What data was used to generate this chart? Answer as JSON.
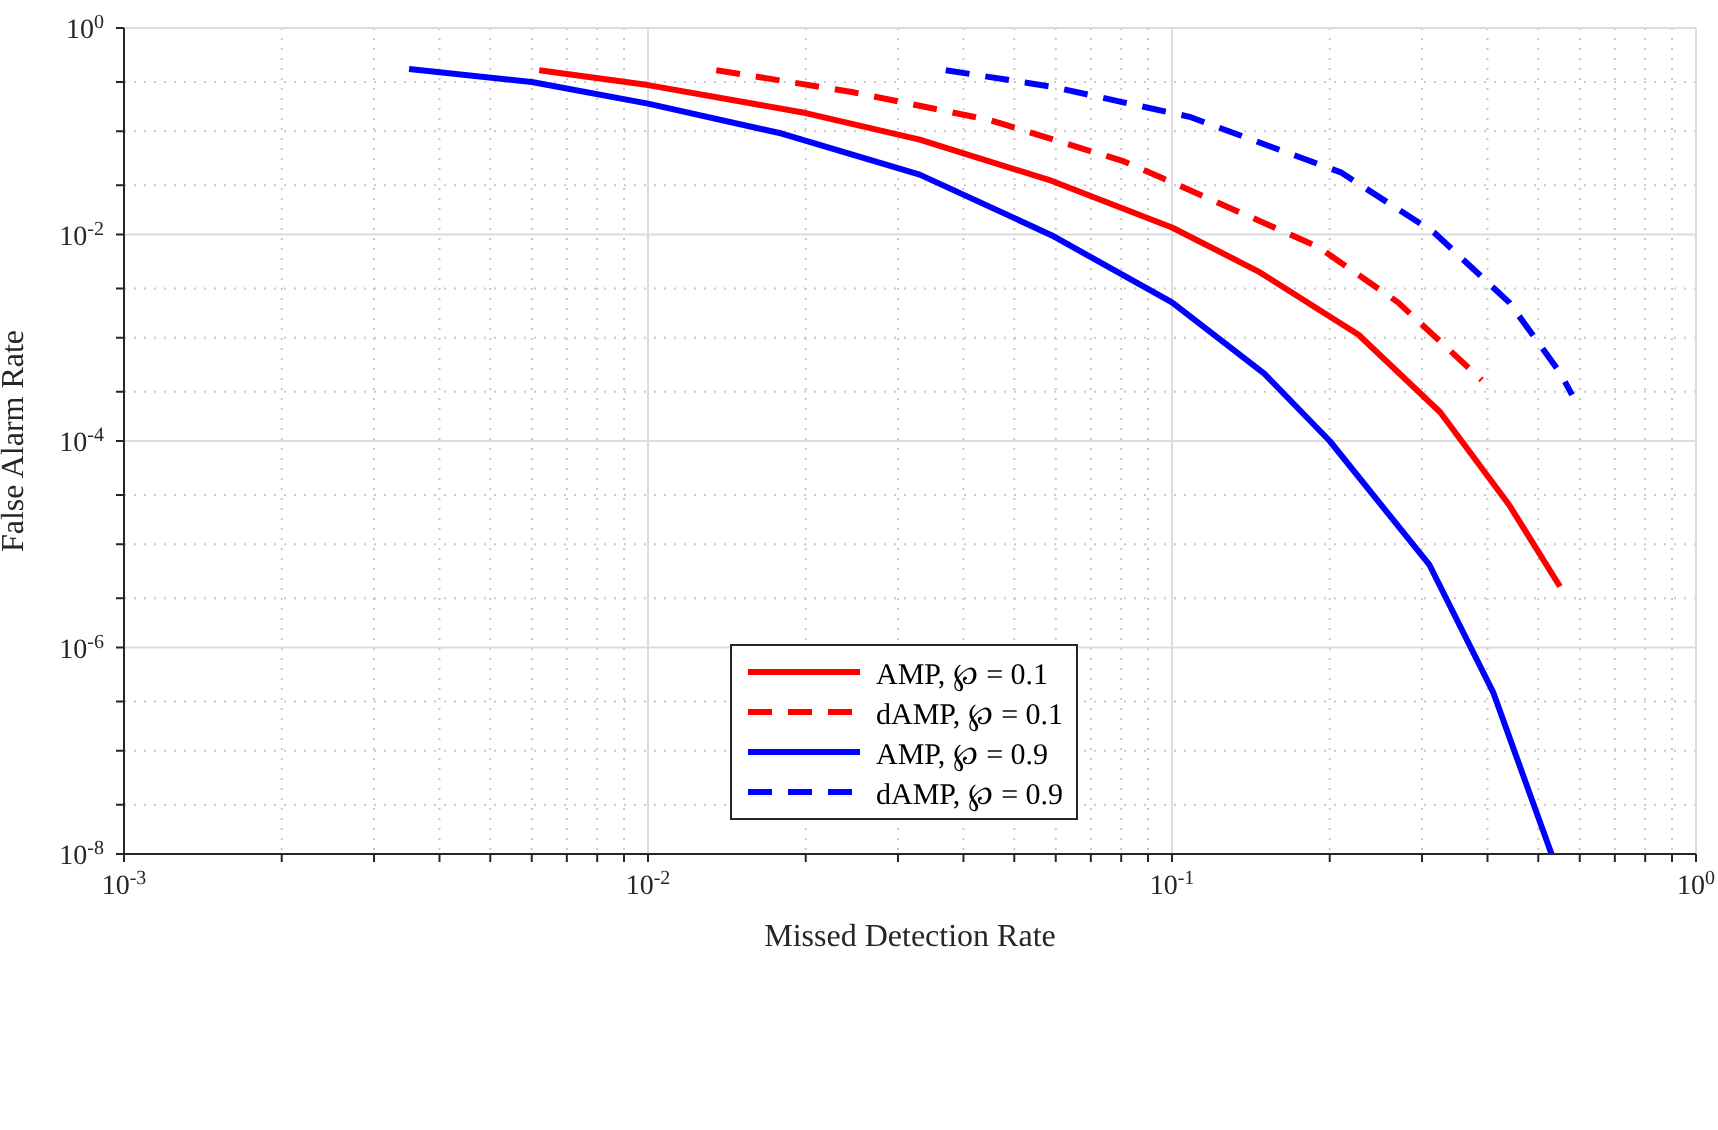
{
  "chart_data": {
    "type": "line",
    "xlabel": "Missed Detection Rate",
    "ylabel": "False Alarm Rate",
    "log": "xy",
    "grid": true,
    "legend": "bottom",
    "xlim": [
      0.001,
      1
    ],
    "ylim": [
      1e-08,
      1
    ],
    "xticks": [
      {
        "value": 0.001,
        "label": "10$^{-3}$"
      },
      {
        "value": 0.002,
        "label": null
      },
      {
        "value": 0.003,
        "label": null
      },
      {
        "value": 0.004,
        "label": null
      },
      {
        "value": 0.005,
        "label": null
      },
      {
        "value": 0.006,
        "label": null
      },
      {
        "value": 0.007,
        "label": null
      },
      {
        "value": 0.008,
        "label": null
      },
      {
        "value": 0.009,
        "label": null
      },
      {
        "value": 0.01,
        "label": "10$^{-2}$"
      },
      {
        "value": 0.02,
        "label": null
      },
      {
        "value": 0.03,
        "label": null
      },
      {
        "value": 0.04,
        "label": null
      },
      {
        "value": 0.05,
        "label": null
      },
      {
        "value": 0.06,
        "label": null
      },
      {
        "value": 0.07,
        "label": null
      },
      {
        "value": 0.08,
        "label": null
      },
      {
        "value": 0.09,
        "label": null
      },
      {
        "value": 0.1,
        "label": "10$^{-1}$"
      },
      {
        "value": 0.2,
        "label": null
      },
      {
        "value": 0.3,
        "label": null
      },
      {
        "value": 0.4,
        "label": null
      },
      {
        "value": 0.5,
        "label": null
      },
      {
        "value": 0.6,
        "label": null
      },
      {
        "value": 0.7,
        "label": null
      },
      {
        "value": 0.8,
        "label": null
      },
      {
        "value": 0.9,
        "label": null
      },
      {
        "value": 1,
        "label": "10$^{0}$"
      }
    ],
    "yticks": [
      {
        "value": 1e-08,
        "label": "10$^{-8}$"
      },
      {
        "value": 3e-08,
        "label": null
      },
      {
        "value": 1e-07,
        "label": null
      },
      {
        "value": 3e-07,
        "label": null
      },
      {
        "value": 1e-06,
        "label": "10$^{-6}$"
      },
      {
        "value": 3e-06,
        "label": null
      },
      {
        "value": 1e-05,
        "label": null
      },
      {
        "value": 3e-05,
        "label": null
      },
      {
        "value": 0.0001,
        "label": "10$^{-4}$"
      },
      {
        "value": 0.0003,
        "label": null
      },
      {
        "value": 0.001,
        "label": null
      },
      {
        "value": 0.003,
        "label": null
      },
      {
        "value": 0.01,
        "label": "10$^{-2}$"
      },
      {
        "value": 0.03,
        "label": null
      },
      {
        "value": 0.1,
        "label": null
      },
      {
        "value": 0.3,
        "label": null
      },
      {
        "value": 1,
        "label": "10$^{0}$"
      }
    ],
    "series": [
      {
        "name": "AMP, ℘ = 0.1",
        "color": "#ff0000",
        "line_style": "solid",
        "x": [
          0.0062,
          0.01,
          0.02,
          0.033,
          0.059,
          0.1,
          0.146,
          0.227,
          0.325,
          0.44,
          0.55
        ],
        "values": [
          0.39,
          0.28,
          0.15,
          0.083,
          0.033,
          0.0117,
          0.0044,
          0.00107,
          0.00019,
          2.4e-05,
          3.9e-06
        ]
      },
      {
        "name": "dAMP, ℘ = 0.1",
        "color": "#ff0000",
        "line_style": "dashed",
        "x": [
          0.0135,
          0.0245,
          0.045,
          0.081,
          0.096,
          0.19,
          0.27,
          0.39
        ],
        "values": [
          0.39,
          0.24,
          0.128,
          0.051,
          0.035,
          0.0076,
          0.0022,
          0.00039
        ]
      },
      {
        "name": "AMP, ℘ = 0.9",
        "color": "#0000ff",
        "line_style": "solid",
        "x": [
          0.0035,
          0.006,
          0.01,
          0.018,
          0.033,
          0.059,
          0.1,
          0.15,
          0.2,
          0.31,
          0.41,
          0.53
        ],
        "values": [
          0.4,
          0.3,
          0.185,
          0.095,
          0.038,
          0.0098,
          0.0022,
          0.00045,
          0.0001,
          6.3e-06,
          3.7e-07,
          1e-08
        ]
      },
      {
        "name": "dAMP, ℘ = 0.9",
        "color": "#0000ff",
        "line_style": "dashed",
        "x": [
          0.037,
          0.059,
          0.108,
          0.21,
          0.316,
          0.44,
          0.55,
          0.58
        ],
        "values": [
          0.39,
          0.27,
          0.138,
          0.04,
          0.0105,
          0.0022,
          0.00046,
          0.00028
        ]
      }
    ]
  }
}
